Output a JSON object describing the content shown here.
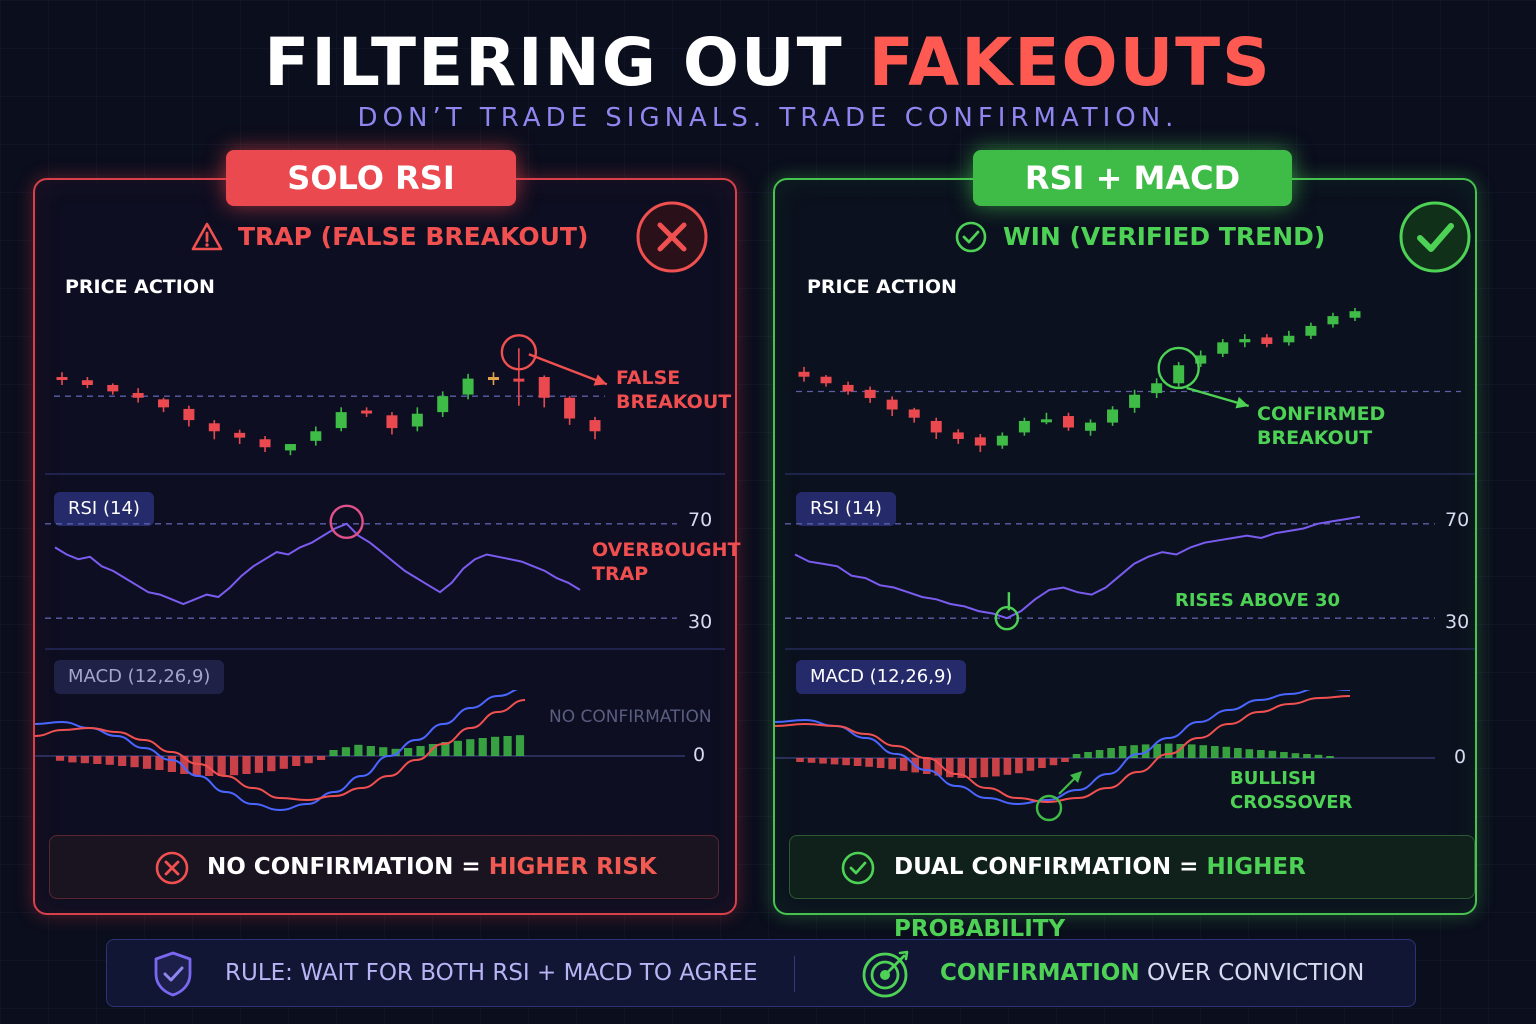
{
  "header": {
    "title_part1": "FILTERING OUT",
    "title_part2": "FAKEOUTS",
    "subtitle": "DON’T TRADE SIGNALS. TRADE CONFIRMATION."
  },
  "colors": {
    "red": "#ea4a4f",
    "green": "#3fbb47",
    "purple": "#8f86f0",
    "rsi_line": "#7b5cf0",
    "macd_blue": "#4a66ff"
  },
  "left_panel": {
    "tab": "SOLO RSI",
    "status": "TRAP (FALSE BREAKOUT)",
    "status_icon": "warning-icon",
    "badge_icon": "x-circle-icon",
    "price_label": "PRICE ACTION",
    "price_annotation_line1": "FALSE",
    "price_annotation_line2": "BREAKOUT",
    "rsi_label": "RSI (14)",
    "rsi_annotation_line1": "OVERBOUGHT",
    "rsi_annotation_line2": "TRAP",
    "macd_label": "MACD (12,26,9)",
    "macd_annotation": "NO CONFIRMATION",
    "bottom_prefix": "NO CONFIRMATION =",
    "bottom_highlight": "HIGHER RISK"
  },
  "right_panel": {
    "tab": "RSI + MACD",
    "status": "WIN (VERIFIED TREND)",
    "status_icon": "check-circle-icon",
    "badge_icon": "check-circle-icon",
    "price_label": "PRICE ACTION",
    "price_annotation_line1": "CONFIRMED",
    "price_annotation_line2": "BREAKOUT",
    "rsi_label": "RSI (14)",
    "rsi_annotation": "RISES ABOVE 30",
    "macd_label": "MACD (12,26,9)",
    "macd_annotation_line1": "BULLISH",
    "macd_annotation_line2": "CROSSOVER",
    "bottom_prefix": "DUAL CONFIRMATION =",
    "bottom_highlight": "HIGHER PROBABILITY"
  },
  "footer": {
    "rule_text": "RULE: WAIT FOR BOTH RSI + MACD TO AGREE",
    "rule_icon": "shield-check-icon",
    "confirm_word": "CONFIRMATION",
    "confirm_rest": "OVER CONVICTION",
    "target_icon": "target-icon"
  },
  "chart_data": [
    {
      "type": "candlestick",
      "panel": "SOLO RSI",
      "title": "PRICE ACTION",
      "annotation": "FALSE BREAKOUT",
      "candles": [
        {
          "o": 40,
          "c": 39,
          "h": 43,
          "l": 35
        },
        {
          "o": 38,
          "c": 35,
          "h": 40,
          "l": 33
        },
        {
          "o": 35,
          "c": 31,
          "h": 36,
          "l": 29
        },
        {
          "o": 30,
          "c": 27,
          "h": 33,
          "l": 24
        },
        {
          "o": 26,
          "c": 21,
          "h": 27,
          "l": 18
        },
        {
          "o": 20,
          "c": 13,
          "h": 22,
          "l": 9
        },
        {
          "o": 11,
          "c": 6,
          "h": 13,
          "l": 1
        },
        {
          "o": 5,
          "c": 2,
          "h": 7,
          "l": -2
        },
        {
          "o": 1,
          "c": -4,
          "h": 3,
          "l": -7
        },
        {
          "o": -6,
          "c": -2,
          "h": -2,
          "l": -9
        },
        {
          "o": 0,
          "c": 6,
          "h": 9,
          "l": -3
        },
        {
          "o": 8,
          "c": 18,
          "h": 21,
          "l": 6
        },
        {
          "o": 19,
          "c": 18,
          "h": 21,
          "l": 15
        },
        {
          "o": 16,
          "c": 8,
          "h": 18,
          "l": 4
        },
        {
          "o": 9,
          "c": 17,
          "h": 21,
          "l": 6
        },
        {
          "o": 18,
          "c": 28,
          "h": 31,
          "l": 15
        },
        {
          "o": 29,
          "c": 39,
          "h": 42,
          "l": 26
        },
        {
          "o": 40,
          "c": 39,
          "h": 43,
          "l": 35
        },
        {
          "o": 39,
          "c": 38,
          "h": 58,
          "l": 22
        },
        {
          "o": 40,
          "c": 27,
          "h": 41,
          "l": 21
        },
        {
          "o": 27,
          "c": 14,
          "h": 28,
          "l": 10
        },
        {
          "o": 13,
          "c": 6,
          "h": 15,
          "l": 1
        }
      ],
      "breakout_level": 28
    },
    {
      "type": "line",
      "panel": "SOLO RSI",
      "title": "RSI (14)",
      "annotation": "OVERBOUGHT TRAP",
      "levels": [
        30,
        70
      ],
      "ylim": [
        25,
        75
      ],
      "values": [
        60,
        57,
        55,
        56,
        52,
        50,
        47,
        44,
        41,
        40,
        38,
        36,
        38,
        40,
        39,
        43,
        48,
        52,
        55,
        58,
        57,
        60,
        62,
        65,
        68,
        70,
        65,
        62,
        58,
        54,
        50,
        47,
        44,
        41,
        45,
        51,
        55,
        57,
        56,
        55,
        54,
        52,
        50,
        47,
        45,
        42
      ]
    },
    {
      "type": "line",
      "panel": "SOLO RSI",
      "title": "MACD (12,26,9)",
      "annotation": "NO CONFIRMATION",
      "zero_line": 0,
      "series": [
        {
          "values": [
            0.8,
            0.85,
            0.7,
            0.5,
            0.2,
            -0.1,
            -0.5,
            -0.9,
            -1.2,
            -1.35,
            -1.2,
            -0.9,
            -0.5,
            0,
            0.4,
            0.8,
            1.2,
            1.5,
            1.7
          ]
        },
        {
          "values": [
            0.5,
            0.65,
            0.7,
            0.6,
            0.4,
            0.1,
            -0.2,
            -0.5,
            -0.8,
            -1.05,
            -1.1,
            -1.0,
            -0.8,
            -0.5,
            -0.1,
            0.3,
            0.7,
            1.1,
            1.4
          ]
        }
      ],
      "histogram": [
        -0.12,
        -0.16,
        -0.18,
        -0.2,
        -0.22,
        -0.25,
        -0.28,
        -0.32,
        -0.35,
        -0.4,
        -0.45,
        -0.48,
        -0.5,
        -0.5,
        -0.48,
        -0.45,
        -0.42,
        -0.38,
        -0.32,
        -0.25,
        -0.18,
        -0.1,
        0.15,
        0.22,
        0.28,
        0.25,
        0.22,
        0.18,
        0.2,
        0.25,
        0.3,
        0.35,
        0.38,
        0.42,
        0.45,
        0.48,
        0.5,
        0.52
      ]
    },
    {
      "type": "candlestick",
      "panel": "RSI + MACD",
      "title": "PRICE ACTION",
      "annotation": "CONFIRMED BREAKOUT",
      "candles": [
        {
          "o": 40,
          "c": 37,
          "h": 43,
          "l": 34
        },
        {
          "o": 37,
          "c": 33,
          "h": 38,
          "l": 31
        },
        {
          "o": 32,
          "c": 28,
          "h": 34,
          "l": 26
        },
        {
          "o": 29,
          "c": 24,
          "h": 31,
          "l": 21
        },
        {
          "o": 23,
          "c": 17,
          "h": 25,
          "l": 13
        },
        {
          "o": 17,
          "c": 12,
          "h": 18,
          "l": 9
        },
        {
          "o": 10,
          "c": 3,
          "h": 12,
          "l": -1
        },
        {
          "o": 3,
          "c": -1,
          "h": 5,
          "l": -4
        },
        {
          "o": 0,
          "c": -5,
          "h": 2,
          "l": -9
        },
        {
          "o": -5,
          "c": 1,
          "h": 3,
          "l": -7
        },
        {
          "o": 3,
          "c": 10,
          "h": 12,
          "l": 1
        },
        {
          "o": 11,
          "c": 11,
          "h": 15,
          "l": 8
        },
        {
          "o": 13,
          "c": 6,
          "h": 15,
          "l": 4
        },
        {
          "o": 4,
          "c": 9,
          "h": 11,
          "l": 1
        },
        {
          "o": 9,
          "c": 17,
          "h": 19,
          "l": 7
        },
        {
          "o": 18,
          "c": 26,
          "h": 29,
          "l": 15
        },
        {
          "o": 27,
          "c": 33,
          "h": 36,
          "l": 24
        },
        {
          "o": 33,
          "c": 44,
          "h": 46,
          "l": 31
        },
        {
          "o": 45,
          "c": 50,
          "h": 53,
          "l": 43
        },
        {
          "o": 51,
          "c": 58,
          "h": 60,
          "l": 49
        },
        {
          "o": 58,
          "c": 60,
          "h": 63,
          "l": 55
        },
        {
          "o": 61,
          "c": 57,
          "h": 63,
          "l": 55
        },
        {
          "o": 58,
          "c": 62,
          "h": 65,
          "l": 56
        },
        {
          "o": 62,
          "c": 68,
          "h": 70,
          "l": 60
        },
        {
          "o": 69,
          "c": 74,
          "h": 76,
          "l": 67
        },
        {
          "o": 73,
          "c": 77,
          "h": 79,
          "l": 71
        }
      ],
      "breakout_level": 28
    },
    {
      "type": "line",
      "panel": "RSI + MACD",
      "title": "RSI (14)",
      "annotation": "RISES ABOVE 30",
      "levels": [
        30,
        70
      ],
      "ylim": [
        25,
        75
      ],
      "values": [
        57,
        54,
        53,
        52,
        48,
        47,
        44,
        43,
        41,
        39,
        38,
        36,
        35,
        33,
        32,
        30,
        33,
        38,
        42,
        43,
        41,
        40,
        43,
        48,
        53,
        56,
        58,
        57,
        60,
        62,
        63,
        64,
        65,
        64,
        66,
        67,
        68,
        70,
        71,
        72,
        73
      ]
    },
    {
      "type": "line",
      "panel": "RSI + MACD",
      "title": "MACD (12,26,9)",
      "annotation": "BULLISH CROSSOVER",
      "zero_line": 0,
      "series": [
        {
          "values": [
            0.9,
            0.95,
            0.8,
            0.5,
            0.1,
            -0.3,
            -0.7,
            -1.0,
            -1.15,
            -1.05,
            -0.8,
            -0.4,
            0.1,
            0.5,
            0.9,
            1.2,
            1.45,
            1.6,
            1.75,
            1.7
          ]
        },
        {
          "values": [
            0.8,
            0.85,
            0.8,
            0.6,
            0.3,
            0.0,
            -0.4,
            -0.75,
            -1.0,
            -1.1,
            -1.0,
            -0.75,
            -0.35,
            0.1,
            0.5,
            0.85,
            1.15,
            1.35,
            1.5,
            1.55
          ]
        }
      ],
      "histogram": [
        -0.1,
        -0.12,
        -0.14,
        -0.16,
        -0.18,
        -0.2,
        -0.22,
        -0.25,
        -0.28,
        -0.32,
        -0.36,
        -0.4,
        -0.44,
        -0.48,
        -0.5,
        -0.5,
        -0.48,
        -0.46,
        -0.42,
        -0.38,
        -0.32,
        -0.25,
        -0.18,
        -0.1,
        0.1,
        0.15,
        0.2,
        0.25,
        0.3,
        0.32,
        0.34,
        0.35,
        0.36,
        0.35,
        0.34,
        0.32,
        0.3,
        0.28,
        0.25,
        0.22,
        0.2,
        0.18,
        0.15,
        0.12,
        0.1,
        0.08,
        0.05
      ]
    }
  ]
}
